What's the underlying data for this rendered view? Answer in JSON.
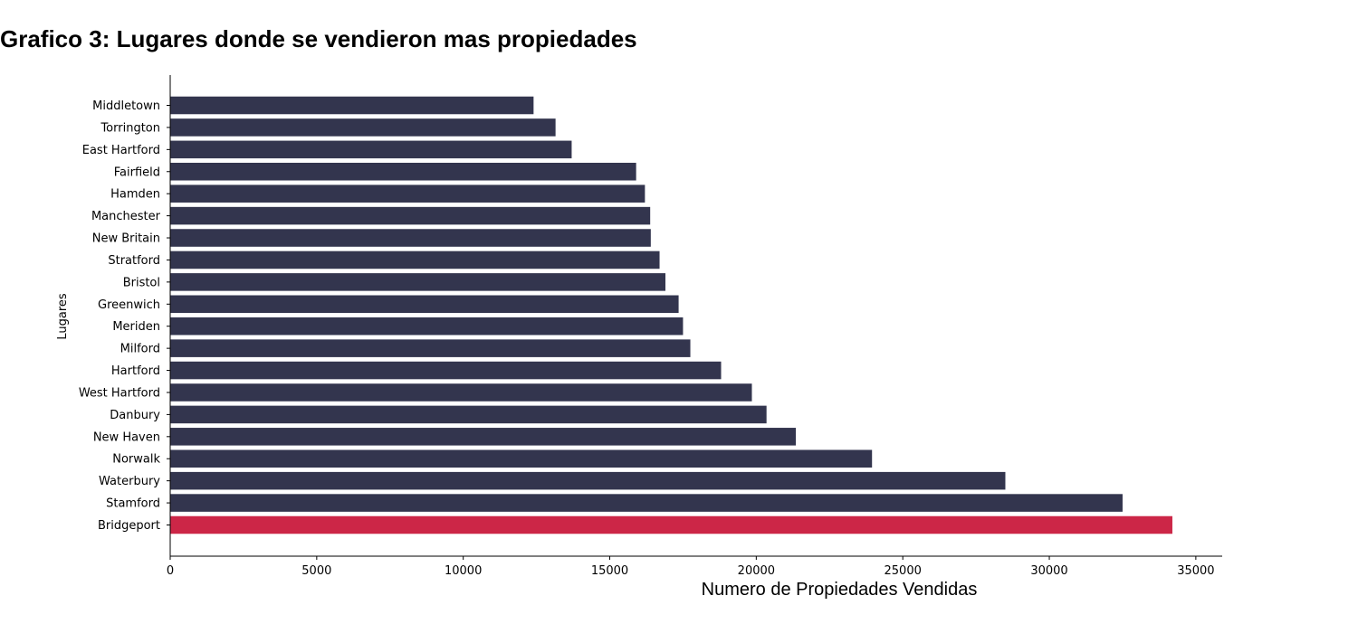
{
  "chart_data": {
    "type": "bar",
    "orientation": "horizontal",
    "title": "Grafico 3: Lugares donde se vendieron mas propiedades",
    "xlabel": "Numero de Propiedades Vendidas",
    "ylabel": "Lugares",
    "xlim": [
      0,
      35900
    ],
    "xticks": [
      0,
      5000,
      10000,
      15000,
      20000,
      25000,
      30000,
      35000
    ],
    "grid": false,
    "categories": [
      "Bridgeport",
      "Stamford",
      "Waterbury",
      "Norwalk",
      "New Haven",
      "Danbury",
      "West Hartford",
      "Hartford",
      "Milford",
      "Meriden",
      "Greenwich",
      "Bristol",
      "Stratford",
      "New Britain",
      "Manchester",
      "Hamden",
      "Fairfield",
      "East Hartford",
      "Torrington",
      "Middletown"
    ],
    "values": [
      34200,
      32500,
      28500,
      23950,
      21350,
      20350,
      19850,
      18800,
      17750,
      17500,
      17350,
      16900,
      16700,
      16400,
      16380,
      16200,
      15900,
      13700,
      13150,
      12400
    ],
    "colors": {
      "default": "#33354e",
      "highlight": "#cc2647"
    },
    "highlight_category": "Bridgeport"
  }
}
